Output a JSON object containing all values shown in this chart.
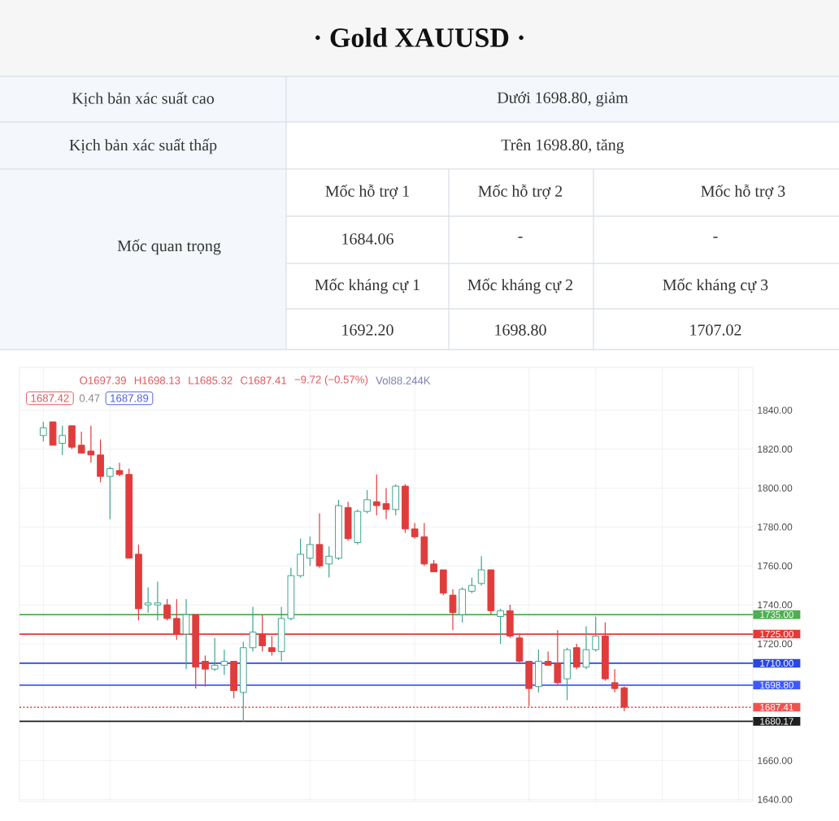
{
  "chart_data": [
    {
      "type": "other",
      "title": "· Gold XAUUSD ·",
      "annotations": [
        "Kịch bản xác suất cao",
        "Dưới 1698.80, giảm",
        "Kịch bản xác suất thấp",
        "Trên 1698.80, tăng",
        "Mốc quan trọng",
        "Mốc hỗ trợ 1",
        "Mốc hỗ trợ 2",
        "Mốc hỗ trợ 3",
        "1684.06",
        "-",
        "-",
        "Mốc kháng cự 1",
        "Mốc kháng cự 2",
        "Mốc kháng cự 3",
        "1692.20",
        "1698.80",
        "1707.02"
      ]
    },
    {
      "type": "candlestick",
      "categories": [
        null,
        null,
        null,
        null,
        null,
        null,
        null,
        null,
        null,
        null,
        null,
        null,
        null,
        null,
        null,
        null,
        null,
        null,
        null,
        null,
        null,
        null,
        null,
        null,
        null,
        null,
        null,
        null,
        null,
        null,
        null,
        null,
        null,
        null,
        null,
        null,
        null,
        null,
        null,
        null,
        null,
        null,
        null,
        null,
        null,
        null,
        null,
        null,
        null,
        null,
        null,
        null,
        null,
        null,
        null,
        null,
        null,
        null,
        null,
        null,
        null,
        null,
        null,
        null,
        null,
        null,
        null,
        null,
        null,
        null,
        null,
        null,
        null,
        null,
        null,
        null,
        null
      ],
      "ohlc": [
        null,
        null,
        [
          1827,
          1834,
          1824,
          1831
        ],
        [
          1834,
          1834,
          1822,
          1822
        ],
        [
          1823,
          1832,
          1817,
          1827
        ],
        [
          1832,
          1832,
          1820,
          1821
        ],
        [
          1822,
          1829,
          1818,
          1818
        ],
        [
          1819,
          1832,
          1813,
          1817
        ],
        [
          1817,
          1825,
          1803,
          1806
        ],
        [
          1806,
          1811,
          1784,
          1810
        ],
        [
          1809,
          1813,
          1806,
          1807
        ],
        [
          1807,
          1810,
          1764,
          1764
        ],
        [
          1766,
          1771,
          1732,
          1738
        ],
        [
          1740,
          1749,
          1736,
          1741
        ],
        [
          1740,
          1752,
          1732,
          1741
        ],
        [
          1740,
          1743,
          1732,
          1733
        ],
        [
          1733,
          1743,
          1722,
          1725
        ],
        [
          1725,
          1743,
          1707,
          1735
        ],
        [
          1735,
          1735,
          1697,
          1708
        ],
        [
          1711,
          1714,
          1698,
          1707
        ],
        [
          1707,
          1723,
          1706,
          1709
        ],
        [
          1709,
          1717,
          1704,
          1711
        ],
        [
          1711,
          1711,
          1692,
          1696
        ],
        [
          1695,
          1721,
          1680,
          1718
        ],
        [
          1718,
          1739,
          1716,
          1726
        ],
        [
          1725,
          1735,
          1716,
          1719
        ],
        [
          1718,
          1724,
          1714,
          1716
        ],
        [
          1716,
          1739,
          1711,
          1733
        ],
        [
          1733,
          1759,
          1732,
          1755
        ],
        [
          1755,
          1774,
          1754,
          1766
        ],
        [
          1764,
          1775,
          1760,
          1771
        ],
        [
          1771,
          1787,
          1759,
          1760
        ],
        [
          1761,
          1770,
          1754,
          1765
        ],
        [
          1764,
          1794,
          1763,
          1791
        ],
        [
          1790,
          1793,
          1773,
          1774
        ],
        [
          1772,
          1789,
          1771,
          1788
        ],
        [
          1788,
          1799,
          1787,
          1794
        ],
        [
          1793,
          1807,
          1786,
          1791
        ],
        [
          1792,
          1800,
          1784,
          1789
        ],
        [
          1789,
          1802,
          1786,
          1801
        ],
        [
          1801,
          1802,
          1777,
          1779
        ],
        [
          1779,
          1782,
          1774,
          1775
        ],
        [
          1775,
          1782,
          1760,
          1761
        ],
        [
          1761,
          1763,
          1757,
          1757
        ],
        [
          1758,
          1758,
          1745,
          1746
        ],
        [
          1745,
          1748,
          1727,
          1736
        ],
        [
          1735,
          1749,
          1731,
          1748
        ],
        [
          1747,
          1754,
          1746,
          1750
        ],
        [
          1751,
          1765,
          1750,
          1758
        ],
        [
          1758,
          1758,
          1735,
          1737
        ],
        [
          1734,
          1738,
          1720,
          1737
        ],
        [
          1737,
          1740,
          1723,
          1724
        ],
        [
          1723,
          1725,
          1710,
          1711
        ],
        [
          1711,
          1711,
          1688,
          1697
        ],
        [
          1698,
          1717,
          1695,
          1711
        ],
        [
          1711,
          1716,
          1709,
          1709
        ],
        [
          1710,
          1727,
          1699,
          1700
        ],
        [
          1702,
          1718,
          1691,
          1717
        ],
        [
          1718,
          1720,
          1707,
          1708
        ],
        [
          1708,
          1729,
          1707,
          1717
        ],
        [
          1717,
          1734,
          1716,
          1724
        ],
        [
          1724,
          1731,
          1701,
          1702
        ],
        [
          1700,
          1707,
          1695,
          1697
        ],
        [
          1697.39,
          1698.13,
          1685.32,
          1687.41
        ],
        null,
        null,
        null,
        null,
        null,
        null,
        null,
        null,
        null,
        null,
        null,
        null,
        null
      ],
      "colors": [
        null,
        null,
        "#3ea58d",
        "#e03c3c",
        "#3ea58d",
        "#e03c3c",
        "#e03c3c",
        "#e03c3c",
        "#e03c3c",
        "#3ea58d",
        "#e03c3c",
        "#e03c3c",
        "#e03c3c",
        "#3ea58d",
        "#3ea58d",
        "#e03c3c",
        "#e03c3c",
        "#3ea58d",
        "#e03c3c",
        "#e03c3c",
        "#3ea58d",
        "#3ea58d",
        "#e03c3c",
        "#3ea58d",
        "#3ea58d",
        "#e03c3c",
        "#e03c3c",
        "#3ea58d",
        "#3ea58d",
        "#3ea58d",
        "#3ea58d",
        "#e03c3c",
        "#3ea58d",
        "#3ea58d",
        "#e03c3c",
        "#3ea58d",
        "#3ea58d",
        "#e03c3c",
        "#e03c3c",
        "#3ea58d",
        "#e03c3c",
        "#e03c3c",
        "#e03c3c",
        "#e03c3c",
        "#e03c3c",
        "#e03c3c",
        "#3ea58d",
        "#3ea58d",
        "#3ea58d",
        "#e03c3c",
        "#3ea58d",
        "#e03c3c",
        "#e03c3c",
        "#e03c3c",
        "#3ea58d",
        "#e03c3c",
        "#e03c3c",
        "#3ea58d",
        "#e03c3c",
        "#3ea58d",
        "#3ea58d",
        "#e03c3c",
        "#e03c3c",
        "#e03c3c",
        null,
        null,
        null,
        null,
        null,
        null,
        null,
        null,
        null,
        null,
        null,
        null,
        null
      ],
      "ylim": [
        1639,
        1862
      ],
      "yticks": [
        {
          "value": 1640,
          "label": "1640.00"
        },
        {
          "value": 1660,
          "label": "1660.00"
        },
        {
          "value": 1680,
          "label": null
        },
        {
          "value": 1700,
          "label": null
        },
        {
          "value": 1720,
          "label": "1720.00"
        },
        {
          "value": 1740,
          "label": "1740.00"
        },
        {
          "value": 1760,
          "label": "1760.00"
        },
        {
          "value": 1780,
          "label": "1780.00"
        },
        {
          "value": 1800,
          "label": "1800.00"
        },
        {
          "value": 1820,
          "label": "1820.00"
        },
        {
          "value": 1840,
          "label": "1840.00"
        }
      ],
      "grid": true,
      "tick_labels": "y",
      "ref_lines": [
        {
          "axis": "y",
          "value": 1735,
          "label": "1735.00",
          "color": "#4caf50"
        },
        {
          "axis": "y",
          "value": 1725,
          "label": "1725.00",
          "color": "#e53935"
        },
        {
          "axis": "y",
          "value": 1710,
          "label": "1710.00",
          "color": "#2948e0"
        },
        {
          "axis": "y",
          "value": 1698.8,
          "label": "1698.80",
          "color": "#3d5afe"
        },
        {
          "axis": "y",
          "value": 1687.41,
          "label": "1687.41",
          "color": "#ef5350",
          "line_style": "dotted"
        },
        {
          "axis": "y",
          "value": 1680.17,
          "label": "1680.17",
          "color": "#1f1f1f"
        }
      ],
      "annotations": [
        "O1697.39",
        "H1698.13",
        "L1685.32",
        "C1687.41",
        "−9.72 (−0.57%)",
        "Vol88.244K",
        "1687.42",
        "0.47",
        "1687.89"
      ]
    }
  ]
}
